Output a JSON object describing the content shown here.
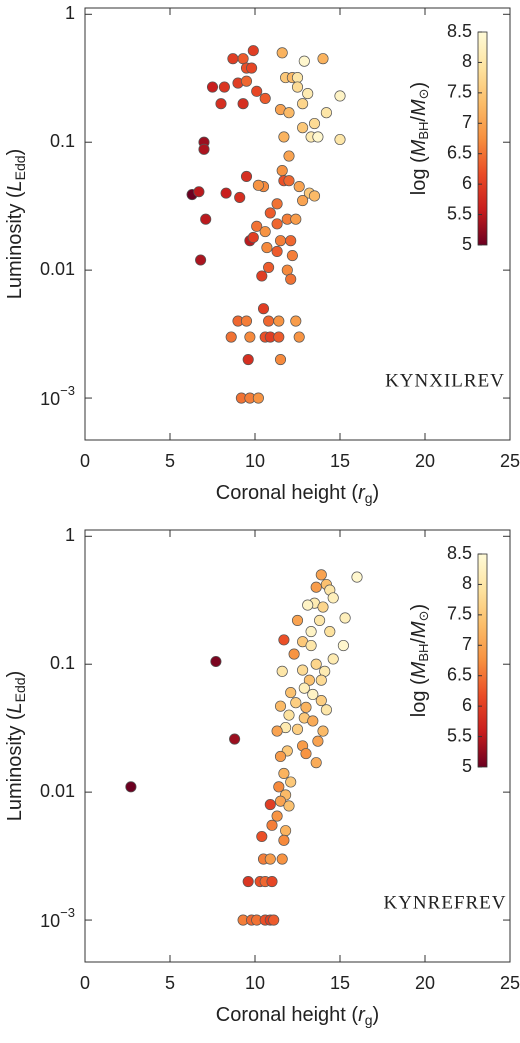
{
  "chart_data": [
    {
      "type": "scatter",
      "xlabel": [
        "Coronal height (",
        "r",
        "g",
        ")"
      ],
      "ylabel": [
        "Luminosity (",
        "L",
        "Edd",
        ")"
      ],
      "colorbar_label": [
        "log (",
        "M",
        "BH",
        "/",
        "M",
        "⊙",
        ")"
      ],
      "annotation": "KYNXILREV",
      "x": [
        9.9,
        9.3,
        8.7,
        9.5,
        9.8,
        11.6,
        7.5,
        8.2,
        9.0,
        9.5,
        10.1,
        8.0,
        9.3,
        10.6,
        11.8,
        12.2,
        12.5,
        12.9,
        14.0,
        12.5,
        13.1,
        12.8,
        11.5,
        12.0,
        14.2,
        15.0,
        13.5,
        12.8,
        13.3,
        13.7,
        15.0,
        7.0,
        7.0,
        11.7,
        12.0,
        9.5,
        11.6,
        6.3,
        6.7,
        8.3,
        9.1,
        10.5,
        10.2,
        11.7,
        12.0,
        12.6,
        13.2,
        13.5,
        12.8,
        11.3,
        10.9,
        7.1,
        10.1,
        10.6,
        11.3,
        11.9,
        12.4,
        9.7,
        9.9,
        11.5,
        12.1,
        6.8,
        10.7,
        11.3,
        12.2,
        10.8,
        11.9,
        10.4,
        12.1,
        10.5,
        9.0,
        9.5,
        10.8,
        11.4,
        12.4,
        8.6,
        9.7,
        10.6,
        10.9,
        11.4,
        12.6,
        9.6,
        11.5,
        9.2,
        9.7,
        10.2
      ],
      "y": [
        0.52,
        0.45,
        0.45,
        0.38,
        0.38,
        0.5,
        0.27,
        0.27,
        0.29,
        0.3,
        0.25,
        0.2,
        0.2,
        0.22,
        0.32,
        0.32,
        0.32,
        0.43,
        0.45,
        0.27,
        0.24,
        0.2,
        0.18,
        0.17,
        0.17,
        0.23,
        0.14,
        0.13,
        0.11,
        0.11,
        0.105,
        0.1,
        0.088,
        0.11,
        0.078,
        0.054,
        0.06,
        0.039,
        0.041,
        0.04,
        0.037,
        0.045,
        0.046,
        0.05,
        0.05,
        0.045,
        0.04,
        0.038,
        0.035,
        0.033,
        0.028,
        0.025,
        0.022,
        0.02,
        0.023,
        0.025,
        0.025,
        0.017,
        0.018,
        0.017,
        0.017,
        0.012,
        0.015,
        0.014,
        0.013,
        0.0105,
        0.01,
        0.009,
        0.0085,
        0.005,
        0.004,
        0.004,
        0.004,
        0.004,
        0.004,
        0.003,
        0.003,
        0.003,
        0.003,
        0.003,
        0.003,
        0.002,
        0.002,
        0.001,
        0.001,
        0.001
      ],
      "c": [
        6.0,
        6.3,
        6.0,
        6.2,
        6.1,
        7.2,
        5.6,
        5.9,
        6.0,
        6.4,
        6.1,
        5.8,
        5.8,
        6.3,
        7.5,
        7.3,
        8.0,
        8.4,
        7.2,
        7.8,
        8.1,
        7.7,
        7.0,
        7.3,
        8.0,
        8.3,
        7.8,
        7.5,
        8.1,
        8.4,
        8.0,
        5.3,
        5.4,
        7.2,
        7.0,
        5.8,
        6.8,
        5.0,
        5.5,
        5.6,
        5.8,
        6.7,
        6.8,
        6.2,
        6.4,
        7.0,
        7.5,
        7.3,
        7.0,
        6.5,
        6.3,
        5.5,
        6.5,
        6.8,
        6.4,
        6.6,
        6.9,
        5.5,
        6.0,
        6.6,
        6.4,
        5.4,
        6.7,
        6.3,
        6.6,
        6.3,
        6.7,
        6.0,
        6.5,
        6.0,
        6.4,
        6.6,
        6.4,
        6.8,
        6.9,
        6.5,
        6.7,
        6.2,
        6.0,
        6.3,
        6.8,
        5.8,
        6.7,
        6.5,
        6.6,
        6.8
      ],
      "xlim": [
        0,
        25
      ],
      "xticks": [
        0,
        5,
        10,
        15,
        20,
        25
      ],
      "ylim": [
        0.00047,
        1.12
      ],
      "log_y": true,
      "yticks": [
        1,
        0.1,
        0.01,
        {
          "value": 0.001,
          "label": "10",
          "sup": "−3"
        }
      ],
      "clim": [
        5,
        8.5
      ],
      "cticks": [
        5,
        5.5,
        6,
        6.5,
        7,
        7.5,
        8,
        8.5
      ],
      "colormap": [
        "#6b0020",
        "#c81e1e",
        "#ea4b26",
        "#f7903f",
        "#fbbd69",
        "#fde3a0",
        "#fffbd8"
      ],
      "marker_edge": "#555555"
    },
    {
      "type": "scatter",
      "xlabel": [
        "Coronal height (",
        "r",
        "g",
        ")"
      ],
      "ylabel": [
        "Luminosity (",
        "L",
        "Edd",
        ")"
      ],
      "colorbar_label": [
        "log (",
        "M",
        "BH",
        "/",
        "M",
        "⊙",
        ")"
      ],
      "annotation": "KYNREFREV",
      "x": [
        2.7,
        7.7,
        8.8,
        13.9,
        14.2,
        14.4,
        16.0,
        13.6,
        14.6,
        13.5,
        13.1,
        14.0,
        15.3,
        13.8,
        12.5,
        13.3,
        14.4,
        15.2,
        11.7,
        12.8,
        13.3,
        12.3,
        14.6,
        13.6,
        12.8,
        14.1,
        11.6,
        13.2,
        13.9,
        12.9,
        12.1,
        13.4,
        13.9,
        12.4,
        11.5,
        13.0,
        14.2,
        12.0,
        12.9,
        13.4,
        11.8,
        12.5,
        11.3,
        14.0,
        13.7,
        12.8,
        11.9,
        11.5,
        13.0,
        13.6,
        11.7,
        12.1,
        11.4,
        11.8,
        10.9,
        11.5,
        12.0,
        11.3,
        11.0,
        11.8,
        10.4,
        11.7,
        10.5,
        10.9,
        11.6,
        9.6,
        10.3,
        10.6,
        11.0,
        9.3,
        9.8,
        10.1,
        10.6,
        10.9,
        11.1
      ],
      "y": [
        0.011,
        0.105,
        0.026,
        0.5,
        0.42,
        0.38,
        0.48,
        0.4,
        0.33,
        0.3,
        0.29,
        0.28,
        0.23,
        0.22,
        0.22,
        0.18,
        0.18,
        0.14,
        0.155,
        0.15,
        0.14,
        0.12,
        0.11,
        0.1,
        0.09,
        0.088,
        0.088,
        0.075,
        0.075,
        0.065,
        0.06,
        0.058,
        0.052,
        0.05,
        0.047,
        0.046,
        0.044,
        0.04,
        0.038,
        0.036,
        0.032,
        0.031,
        0.03,
        0.03,
        0.025,
        0.023,
        0.021,
        0.019,
        0.02,
        0.017,
        0.014,
        0.012,
        0.011,
        0.0095,
        0.008,
        0.0085,
        0.0078,
        0.0065,
        0.0055,
        0.005,
        0.0045,
        0.0042,
        0.003,
        0.003,
        0.003,
        0.002,
        0.002,
        0.002,
        0.002,
        0.001,
        0.001,
        0.001,
        0.001,
        0.001,
        0.001
      ],
      "c": [
        5.0,
        5.1,
        5.3,
        7.0,
        7.4,
        8.0,
        8.4,
        6.9,
        8.2,
        8.1,
        8.3,
        7.7,
        8.2,
        8.0,
        7.0,
        8.3,
        7.9,
        8.4,
        6.2,
        7.5,
        8.0,
        6.8,
        8.1,
        7.7,
        7.8,
        8.1,
        8.0,
        7.4,
        7.8,
        8.2,
        7.4,
        8.3,
        7.6,
        7.6,
        7.3,
        7.2,
        8.0,
        7.9,
        7.5,
        7.1,
        8.1,
        7.6,
        7.0,
        7.3,
        7.0,
        6.9,
        7.5,
        6.9,
        6.8,
        7.1,
        7.2,
        7.5,
        6.7,
        7.3,
        6.0,
        7.0,
        7.4,
        6.8,
        6.6,
        7.2,
        6.2,
        6.7,
        6.6,
        6.9,
        6.8,
        5.9,
        6.2,
        6.4,
        6.1,
        6.6,
        6.4,
        6.5,
        6.2,
        6.0,
        6.3
      ],
      "xlim": [
        0,
        25
      ],
      "xticks": [
        0,
        5,
        10,
        15,
        20,
        25
      ],
      "ylim": [
        0.00047,
        1.12
      ],
      "log_y": true,
      "yticks": [
        1,
        0.1,
        0.01,
        {
          "value": 0.001,
          "label": "10",
          "sup": "−3"
        }
      ],
      "clim": [
        5,
        8.5
      ],
      "cticks": [
        5,
        5.5,
        6,
        6.5,
        7,
        7.5,
        8,
        8.5
      ],
      "colormap": [
        "#6b0020",
        "#c81e1e",
        "#ea4b26",
        "#f7903f",
        "#fbbd69",
        "#fde3a0",
        "#fffbd8"
      ],
      "marker_edge": "#555555"
    }
  ]
}
